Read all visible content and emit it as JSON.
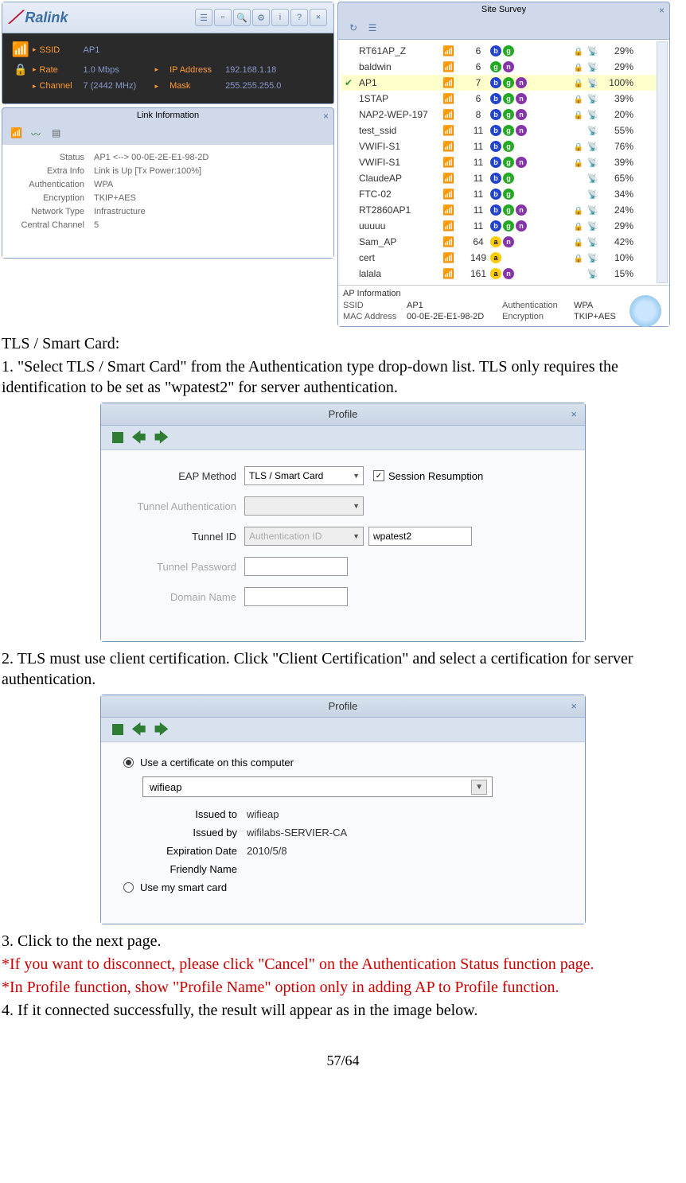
{
  "ralink": {
    "logo": "Ralink",
    "rows": [
      {
        "label": "SSID",
        "value": "AP1",
        "label2": "",
        "value2": ""
      },
      {
        "label": "Rate",
        "value": "1.0 Mbps",
        "label2": "IP Address",
        "value2": "192.168.1.18"
      },
      {
        "label": "Channel",
        "value": "7 (2442 MHz)",
        "label2": "Mask",
        "value2": "255.255.255.0"
      }
    ]
  },
  "linkinfo": {
    "title": "Link Information",
    "rows": [
      {
        "label": "Status",
        "value": "AP1 <--> 00-0E-2E-E1-98-2D"
      },
      {
        "label": "Extra Info",
        "value": "Link is Up [Tx Power:100%]"
      },
      {
        "label": "Authentication",
        "value": "WPA"
      },
      {
        "label": "Encryption",
        "value": "TKIP+AES"
      },
      {
        "label": "Network Type",
        "value": "Infrastructure"
      },
      {
        "label": "Central Channel",
        "value": "5"
      }
    ]
  },
  "survey": {
    "title": "Site Survey",
    "rows": [
      {
        "sel": false,
        "name": "RT61AP_Z",
        "ch": "6",
        "badges": [
          "b",
          "g"
        ],
        "enc": true,
        "pct": "29%"
      },
      {
        "sel": false,
        "name": "baldwin",
        "ch": "6",
        "badges": [
          "g",
          "n"
        ],
        "enc": true,
        "pct": "29%"
      },
      {
        "sel": true,
        "name": "AP1",
        "ch": "7",
        "badges": [
          "b",
          "g",
          "n"
        ],
        "enc": true,
        "pct": "100%"
      },
      {
        "sel": false,
        "name": "1STAP",
        "ch": "6",
        "badges": [
          "b",
          "g",
          "n"
        ],
        "enc": true,
        "pct": "39%"
      },
      {
        "sel": false,
        "name": "NAP2-WEP-197",
        "ch": "8",
        "badges": [
          "b",
          "g",
          "n"
        ],
        "enc": true,
        "pct": "20%"
      },
      {
        "sel": false,
        "name": "test_ssid",
        "ch": "11",
        "badges": [
          "b",
          "g",
          "n"
        ],
        "enc": false,
        "pct": "55%"
      },
      {
        "sel": false,
        "name": "VWIFI-S1",
        "ch": "11",
        "badges": [
          "b",
          "g"
        ],
        "enc": true,
        "pct": "76%"
      },
      {
        "sel": false,
        "name": "VWIFI-S1",
        "ch": "11",
        "badges": [
          "b",
          "g",
          "n"
        ],
        "enc": true,
        "pct": "39%"
      },
      {
        "sel": false,
        "name": "ClaudeAP",
        "ch": "11",
        "badges": [
          "b",
          "g"
        ],
        "enc": false,
        "pct": "65%"
      },
      {
        "sel": false,
        "name": "FTC-02",
        "ch": "11",
        "badges": [
          "b",
          "g"
        ],
        "enc": false,
        "pct": "34%"
      },
      {
        "sel": false,
        "name": "RT2860AP1",
        "ch": "11",
        "badges": [
          "b",
          "g",
          "n"
        ],
        "enc": true,
        "pct": "24%"
      },
      {
        "sel": false,
        "name": "uuuuu",
        "ch": "11",
        "badges": [
          "b",
          "g",
          "n"
        ],
        "enc": true,
        "pct": "29%"
      },
      {
        "sel": false,
        "name": "Sam_AP",
        "ch": "64",
        "badges": [
          "a",
          "n"
        ],
        "enc": true,
        "pct": "42%"
      },
      {
        "sel": false,
        "name": "cert",
        "ch": "149",
        "badges": [
          "a"
        ],
        "enc": true,
        "pct": "10%"
      },
      {
        "sel": false,
        "name": "lalala",
        "ch": "161",
        "badges": [
          "a",
          "n"
        ],
        "enc": false,
        "pct": "15%"
      }
    ],
    "apinfo": {
      "title": "AP Information",
      "ssid_l": "SSID",
      "ssid_v": "AP1",
      "auth_l": "Authentication",
      "auth_v": "WPA",
      "mac_l": "MAC Address",
      "mac_v": "00-0E-2E-E1-98-2D",
      "enc_l": "Encryption",
      "enc_v": "TKIP+AES"
    }
  },
  "doc": {
    "h1": "TLS / Smart Card:",
    "p1": "1. \"Select TLS / Smart Card\" from the Authentication type drop-down list. TLS only requires the identification to be set as \"wpatest2\" for server authentication.",
    "p2": "2. TLS must use client certification. Click \"Client Certification\" and select a certification for server authentication.",
    "p3": "3. Click to the next page.",
    "p4": "*If you want to disconnect, please click \"Cancel\" on the Authentication Status function page.",
    "p5": "*In Profile function, show \"Profile Name\" option only in adding AP to Profile function.",
    "p6": "4. If it connected successfully, the result will appear as in the image below.",
    "pagenum": "57/64"
  },
  "profile1": {
    "title": "Profile",
    "eap_label": "EAP Method",
    "eap_value": "TLS / Smart Card",
    "session_label": "Session Resumption",
    "tunnel_auth_label": "Tunnel Authentication",
    "tunnel_id_label": "Tunnel ID",
    "tunnel_id_sel": "Authentication ID",
    "tunnel_id_val": "wpatest2",
    "tunnel_pw_label": "Tunnel Password",
    "domain_label": "Domain Name"
  },
  "profile2": {
    "title": "Profile",
    "radio1_label": "Use a certificate on this computer",
    "cert_value": "wifieap",
    "rows": [
      {
        "label": "Issued to",
        "value": "wifieap"
      },
      {
        "label": "Issued by",
        "value": "wifilabs-SERVIER-CA"
      },
      {
        "label": "Expiration Date",
        "value": "2010/5/8"
      },
      {
        "label": "Friendly Name",
        "value": ""
      }
    ],
    "radio2_label": "Use my smart card"
  }
}
